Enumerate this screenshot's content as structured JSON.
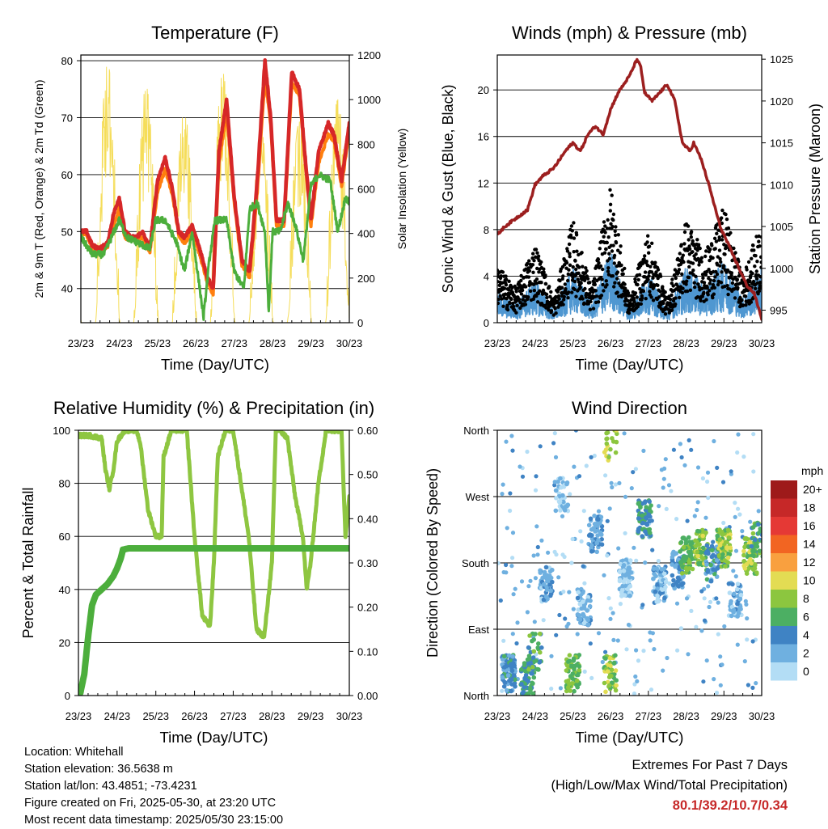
{
  "chart_data": [
    {
      "type": "line",
      "title": "Temperature (F)",
      "xlabel": "Time (Day/UTC)",
      "ylabel": "2m & 9m T (Red, Orange) & 2m Td (Green)",
      "ylabel_right": "Solar Insolation (Yellow)",
      "x_tick_labels": [
        "23/23",
        "24/23",
        "25/23",
        "26/23",
        "27/23",
        "28/23",
        "29/23",
        "30/23"
      ],
      "ylim": [
        34,
        81
      ],
      "yticks": [
        40,
        50,
        60,
        70,
        80
      ],
      "ylim_right": [
        0,
        1200
      ],
      "yticks_right": [
        0,
        200,
        400,
        600,
        800,
        1000,
        1200
      ],
      "grid": "horizontal",
      "series": [
        {
          "color": "#d62728",
          "x": [
            0,
            0.15,
            0.3,
            0.5,
            0.7,
            0.85,
            1.0,
            1.15,
            1.3,
            1.45,
            1.6,
            1.8,
            2.0,
            2.2,
            2.4,
            2.55,
            2.7,
            2.9,
            3.1,
            3.3,
            3.45,
            3.6,
            3.8,
            4.0,
            4.2,
            4.4,
            4.6,
            4.8,
            4.95,
            5.1,
            5.3,
            5.5,
            5.7,
            5.85,
            6.0,
            6.2,
            6.45,
            6.6,
            6.8,
            7.0
          ],
          "values": [
            50,
            50,
            47.5,
            47,
            48,
            53,
            56,
            50,
            49,
            49,
            50,
            47,
            59,
            63,
            57,
            50,
            49,
            51,
            47,
            42,
            40,
            64,
            73,
            56,
            45,
            43,
            59,
            80,
            70,
            52,
            52,
            78,
            75,
            63,
            52,
            64,
            69,
            67,
            59,
            69
          ]
        },
        {
          "color": "#ff7f0e",
          "x": [
            0,
            0.15,
            0.3,
            0.5,
            0.7,
            0.85,
            1.0,
            1.15,
            1.3,
            1.45,
            1.6,
            1.8,
            2.0,
            2.2,
            2.4,
            2.55,
            2.7,
            2.9,
            3.1,
            3.3,
            3.45,
            3.6,
            3.8,
            4.0,
            4.2,
            4.4,
            4.6,
            4.8,
            4.95,
            5.1,
            5.3,
            5.5,
            5.7,
            5.85,
            6.0,
            6.2,
            6.45,
            6.6,
            6.8,
            7.0
          ],
          "values": [
            49.5,
            49.5,
            47,
            46.5,
            47.5,
            51,
            54,
            49,
            48.5,
            48.5,
            49,
            46.5,
            57,
            61,
            56,
            49.5,
            48,
            50,
            46,
            41,
            39,
            62,
            71,
            55,
            44,
            42,
            57,
            77,
            69,
            51,
            51,
            76,
            74,
            62,
            51,
            62,
            67,
            66,
            58,
            68
          ]
        },
        {
          "color": "#4cae3c",
          "x": [
            0,
            0.3,
            0.6,
            0.8,
            1.0,
            1.2,
            1.5,
            1.8,
            1.95,
            2.2,
            2.5,
            2.7,
            2.9,
            3.1,
            3.2,
            3.35,
            3.5,
            3.8,
            4.0,
            4.25,
            4.4,
            4.6,
            4.8,
            4.9,
            5.0,
            5.2,
            5.4,
            5.6,
            5.8,
            6.0,
            6.2,
            6.5,
            6.7,
            6.9,
            7.0
          ],
          "values": [
            49,
            46,
            46,
            49,
            52,
            49,
            48,
            47,
            52,
            52,
            48,
            43,
            50,
            40,
            35,
            45,
            52,
            52,
            43,
            40,
            54,
            55,
            50,
            36,
            50,
            50,
            55,
            51,
            45,
            58,
            60,
            59,
            50,
            56,
            55
          ]
        }
      ],
      "solar_insolation": [
        {
          "day": 0,
          "peak": 500
        },
        {
          "day": 1,
          "peak": 1160
        },
        {
          "day": 2,
          "peak": 1060
        },
        {
          "day": 3,
          "peak": 950
        },
        {
          "day": 4,
          "peak": 1120
        },
        {
          "day": 5,
          "peak": 860
        },
        {
          "day": 6,
          "peak": 900
        },
        {
          "day": 7,
          "peak": 1000
        }
      ]
    },
    {
      "type": "line",
      "title": "Winds (mph) & Pressure (mb)",
      "xlabel": "Time (Day/UTC)",
      "ylabel": "Sonic Wind & Gust (Blue, Black)",
      "ylabel_right": "Station Pressure (Maroon)",
      "x_tick_labels": [
        "23/23",
        "24/23",
        "25/23",
        "26/23",
        "27/23",
        "28/23",
        "29/23",
        "30/23"
      ],
      "ylim": [
        0,
        23
      ],
      "yticks": [
        0,
        4,
        8,
        12,
        16,
        20
      ],
      "ylim_right": [
        993.5,
        1025.5
      ],
      "yticks_right": [
        995,
        1000,
        1005,
        1010,
        1015,
        1020,
        1025
      ],
      "grid": "horizontal",
      "wind_activity": [
        {
          "day": 0.0,
          "level": 5
        },
        {
          "day": 0.5,
          "level": 3
        },
        {
          "day": 1.0,
          "level": 7
        },
        {
          "day": 1.5,
          "level": 2
        },
        {
          "day": 2.0,
          "level": 9
        },
        {
          "day": 2.5,
          "level": 3
        },
        {
          "day": 3.0,
          "level": 12
        },
        {
          "day": 3.5,
          "level": 2
        },
        {
          "day": 4.0,
          "level": 8
        },
        {
          "day": 4.5,
          "level": 2
        },
        {
          "day": 5.0,
          "level": 9
        },
        {
          "day": 5.5,
          "level": 6
        },
        {
          "day": 6.0,
          "level": 10
        },
        {
          "day": 6.5,
          "level": 4
        },
        {
          "day": 7.0,
          "level": 9
        }
      ],
      "pressure": {
        "x": [
          0,
          0.2,
          0.5,
          0.8,
          1.0,
          1.2,
          1.5,
          1.8,
          2.0,
          2.2,
          2.4,
          2.6,
          2.8,
          3.0,
          3.2,
          3.5,
          3.7,
          3.8,
          3.9,
          4.1,
          4.3,
          4.5,
          4.7,
          4.9,
          5.1,
          5.2,
          5.4,
          5.6,
          5.9,
          6.1,
          6.4,
          6.6,
          6.8,
          7.0
        ],
        "values": [
          1004,
          1005,
          1006,
          1007,
          1010,
          1011,
          1012,
          1014,
          1015,
          1014,
          1016,
          1017,
          1016,
          1019,
          1021,
          1023,
          1025,
          1024,
          1021,
          1020,
          1021,
          1022,
          1020,
          1015,
          1014,
          1015,
          1013,
          1010,
          1005,
          1003,
          1000,
          998,
          997,
          994
        ]
      }
    },
    {
      "type": "line",
      "title": "Relative Humidity (%) & Precipitation (in)",
      "xlabel": "Time (Day/UTC)",
      "ylabel": "Percent & Total Rainfall",
      "x_tick_labels": [
        "23/23",
        "24/23",
        "25/23",
        "26/23",
        "27/23",
        "28/23",
        "29/23",
        "30/23"
      ],
      "ylim": [
        0,
        100
      ],
      "yticks": [
        0,
        20,
        40,
        60,
        80,
        100
      ],
      "ylim_right": [
        0,
        0.6
      ],
      "yticks_right": [
        "0.00",
        "0.10",
        "0.20",
        "0.30",
        "0.40",
        "0.50",
        "0.60"
      ],
      "grid": "horizontal",
      "series": [
        {
          "color": "#8ec641",
          "x": [
            0,
            0.3,
            0.6,
            0.7,
            0.8,
            0.9,
            1.0,
            1.2,
            1.5,
            1.6,
            1.8,
            2.0,
            2.15,
            2.2,
            2.4,
            2.6,
            2.8,
            2.9,
            3.0,
            3.2,
            3.4,
            3.5,
            3.6,
            3.8,
            4.0,
            4.2,
            4.4,
            4.6,
            4.8,
            5.0,
            5.1,
            5.2,
            5.4,
            5.6,
            5.8,
            5.9,
            6.0,
            6.2,
            6.4,
            6.6,
            6.8,
            6.9,
            7.0
          ],
          "values": [
            98,
            98,
            97,
            85,
            78,
            85,
            96,
            100,
            100,
            95,
            70,
            60,
            60,
            90,
            100,
            100,
            100,
            80,
            60,
            30,
            26,
            50,
            90,
            100,
            100,
            80,
            60,
            25,
            22,
            50,
            100,
            100,
            97,
            75,
            60,
            40,
            50,
            80,
            100,
            100,
            100,
            60,
            75
          ]
        },
        {
          "color": "#4cae3c",
          "x": [
            0,
            0.05,
            0.15,
            0.25,
            0.35,
            0.45,
            0.6,
            0.75,
            0.9,
            1.0,
            1.1,
            1.15,
            1.3,
            1.6,
            2.0,
            7.0
          ],
          "values": [
            0,
            1,
            8,
            22,
            34,
            38,
            40,
            42,
            45,
            48,
            52,
            55,
            55.5,
            55.5,
            55.5,
            55.5
          ]
        }
      ]
    },
    {
      "type": "scatter",
      "title": "Wind Direction",
      "xlabel": "Time (Day/UTC)",
      "ylabel": "Direction (Colored By Speed)",
      "x_tick_labels": [
        "23/23",
        "24/23",
        "25/23",
        "26/23",
        "27/23",
        "28/23",
        "29/23",
        "30/23"
      ],
      "y_tick_labels": [
        "North",
        "East",
        "South",
        "West",
        "North"
      ],
      "ylim": [
        0,
        360
      ],
      "grid": "horizontal",
      "legend": {
        "title": "mph",
        "placement": "right",
        "labels": [
          "20+",
          "18",
          "16",
          "14",
          "12",
          "10",
          "8",
          "6",
          "4",
          "2",
          "0"
        ],
        "colors": [
          "#9e1a1a",
          "#c62828",
          "#e53935",
          "#f26522",
          "#f9a03f",
          "#e3dc53",
          "#8cc63f",
          "#4caf63",
          "#3f83c4",
          "#6fb0e0",
          "#b3ddf5"
        ]
      },
      "clusters": [
        {
          "day": 0.3,
          "dir": 30,
          "speed": 4,
          "count": 40
        },
        {
          "day": 0.8,
          "dir": 25,
          "speed": 5,
          "count": 35
        },
        {
          "day": 1.0,
          "dir": 60,
          "speed": 6,
          "count": 15
        },
        {
          "day": 1.3,
          "dir": 150,
          "speed": 2,
          "count": 25
        },
        {
          "day": 1.7,
          "dir": 270,
          "speed": 1,
          "count": 20
        },
        {
          "day": 2.0,
          "dir": 30,
          "speed": 7,
          "count": 30
        },
        {
          "day": 2.3,
          "dir": 120,
          "speed": 2,
          "count": 30
        },
        {
          "day": 2.6,
          "dir": 220,
          "speed": 3,
          "count": 25
        },
        {
          "day": 3.0,
          "dir": 30,
          "speed": 8,
          "count": 25
        },
        {
          "day": 3.0,
          "dir": 340,
          "speed": 9,
          "count": 10
        },
        {
          "day": 3.4,
          "dir": 160,
          "speed": 1,
          "count": 40
        },
        {
          "day": 3.9,
          "dir": 240,
          "speed": 5,
          "count": 35
        },
        {
          "day": 4.3,
          "dir": 150,
          "speed": 2,
          "count": 40
        },
        {
          "day": 4.8,
          "dir": 170,
          "speed": 3,
          "count": 25
        },
        {
          "day": 5.0,
          "dir": 190,
          "speed": 7,
          "count": 35
        },
        {
          "day": 5.4,
          "dir": 200,
          "speed": 8,
          "count": 30
        },
        {
          "day": 5.7,
          "dir": 180,
          "speed": 4,
          "count": 25
        },
        {
          "day": 6.0,
          "dir": 200,
          "speed": 8,
          "count": 35
        },
        {
          "day": 6.3,
          "dir": 130,
          "speed": 2,
          "count": 25
        },
        {
          "day": 6.7,
          "dir": 190,
          "speed": 8,
          "count": 35
        },
        {
          "day": 6.9,
          "dir": 210,
          "speed": 6,
          "count": 20
        }
      ]
    }
  ],
  "station_info": {
    "location": "Location: Whitehall",
    "elevation": "Station elevation: 36.5638 m",
    "latlon": "Station lat/lon: 43.4851; -73.4231",
    "created": "Figure created on Fri, 2025-05-30, at 23:20 UTC",
    "latest": "Most recent data timestamp: 2025/05/30 23:15:00"
  },
  "extremes": {
    "title": "Extremes For Past 7 Days",
    "subtitle": "(High/Low/Max Wind/Total Precipitation)",
    "values": "80.1/39.2/10.7/0.34"
  },
  "colors": {
    "temp_2m": "#d62728",
    "temp_9m": "#ff7f0e",
    "dewpoint": "#4cae3c",
    "solar": "#f5dd5a",
    "wind": "#4f97d1",
    "gust": "#000000",
    "pressure": "#9c1f1f",
    "rh": "#8ec641",
    "precip": "#4cae3c"
  }
}
